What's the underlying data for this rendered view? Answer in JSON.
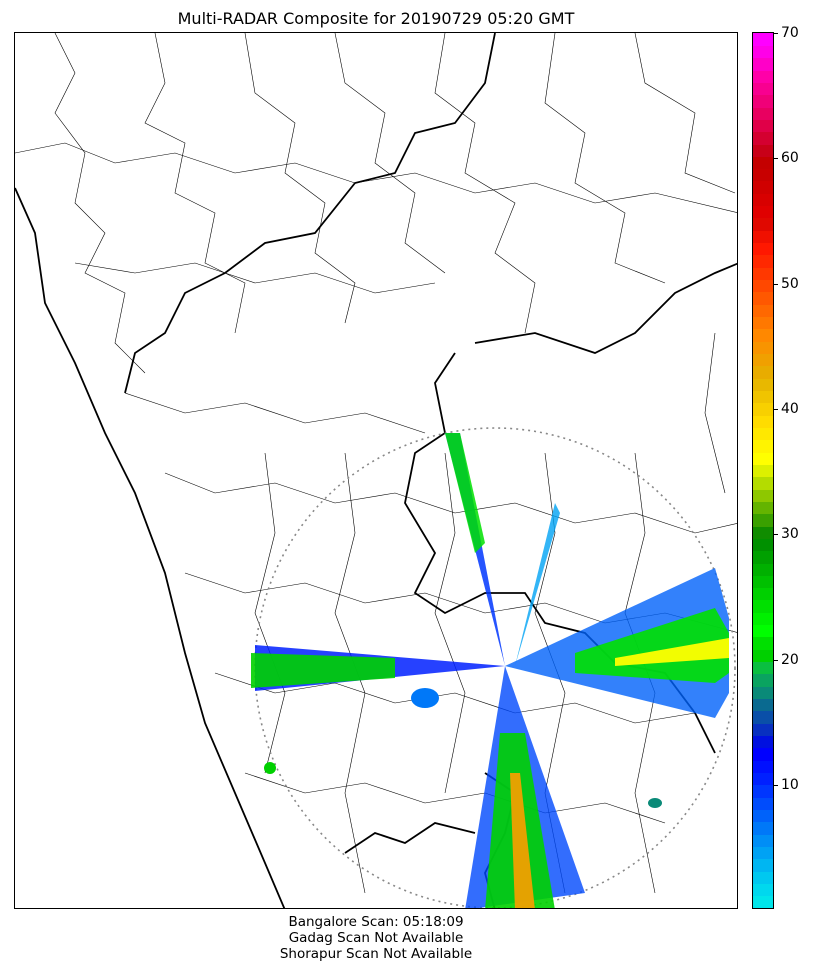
{
  "title": "Multi-RADAR Composite for 20190729 05:20 GMT",
  "footer": {
    "line1": "Bangalore Scan: 05:18:09",
    "line2": "Gadag Scan Not Available",
    "line3": "Shorapur Scan Not Available"
  },
  "colorbar": {
    "min": 0,
    "max": 70,
    "ticks": [
      "10",
      "20",
      "30",
      "40",
      "50",
      "60",
      "70"
    ],
    "colors": [
      "#00e5ea",
      "#00d8ee",
      "#00c8f0",
      "#00b6f2",
      "#00a2f4",
      "#008ef6",
      "#0078f8",
      "#0062fa",
      "#004cfc",
      "#0036fe",
      "#0020ff",
      "#0010ff",
      "#0000ff",
      "#0010e0",
      "#0830c0",
      "#0a4fa8",
      "#0a6a90",
      "#0a8a78",
      "#0aa360",
      "#0abf40",
      "#00d000",
      "#00e000",
      "#00ff00",
      "#00f000",
      "#00e000",
      "#00d000",
      "#00c000",
      "#00b000",
      "#00a000",
      "#009000",
      "#108c00",
      "#3aa000",
      "#64b400",
      "#8ec800",
      "#b4dc00",
      "#dcf000",
      "#ffff00",
      "#fff400",
      "#ffe800",
      "#ffdc00",
      "#f8d000",
      "#f0c400",
      "#e8b800",
      "#e8ac00",
      "#f0a000",
      "#f89400",
      "#ff8800",
      "#ff7800",
      "#ff6800",
      "#ff5800",
      "#ff4800",
      "#ff3800",
      "#ff2800",
      "#ff1800",
      "#f01000",
      "#e00800",
      "#e00000",
      "#d80000",
      "#d00000",
      "#c80000",
      "#c40000",
      "#c80018",
      "#d40030",
      "#e00048",
      "#e80060",
      "#f00078",
      "#f80090",
      "#ff00a8",
      "#ff00c8",
      "#ff00e8",
      "#ff00ff"
    ]
  },
  "radars": [
    {
      "name": "Bangalore",
      "scan_time": "05:18:09"
    },
    {
      "name": "Gadag",
      "status": "Not Available"
    },
    {
      "name": "Shorapur",
      "status": "Not Available"
    }
  ]
}
